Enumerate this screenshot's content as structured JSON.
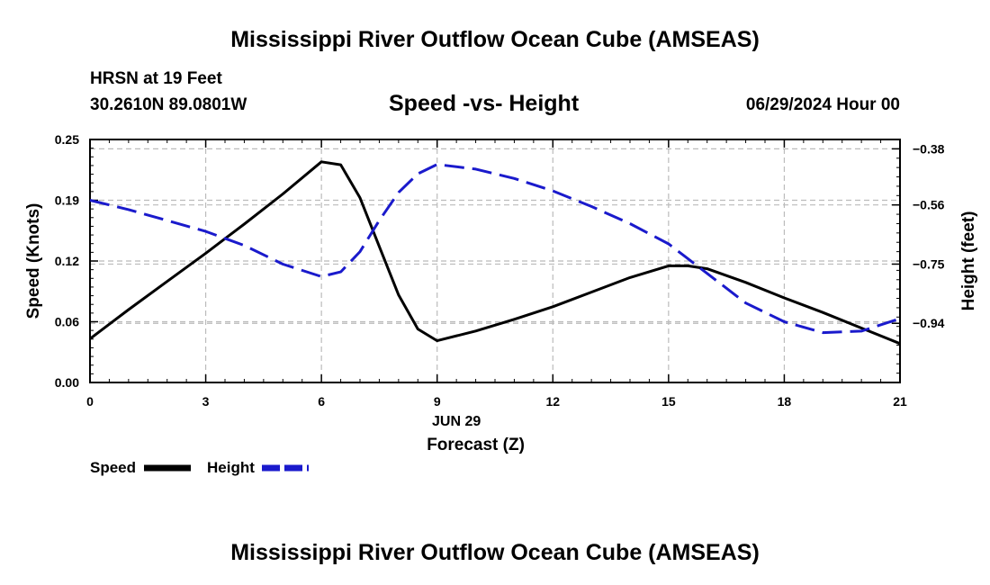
{
  "header": {
    "title_top": "Mississippi River Outflow Ocean Cube (AMSEAS)",
    "station": "HRSN at 19 Feet",
    "location": "30.2610N  89.0801W",
    "date_hour": "06/29/2024 Hour 00",
    "title_bottom": "Mississippi River Outflow Ocean Cube (AMSEAS)"
  },
  "colors": {
    "speed": "#000000",
    "height": "#1a1acc",
    "grid": "#bbbbbb"
  },
  "chart_data": {
    "type": "line",
    "title": "Speed -vs- Height",
    "xlabel": "Forecast (Z)",
    "date_label": "JUN 29",
    "ylabel": "Speed (Knots)",
    "y2label": "Height (feet)",
    "xlim": [
      0,
      21
    ],
    "ylim": [
      0.0,
      0.25
    ],
    "y2lim": [
      -1.13,
      -0.35
    ],
    "x_ticks": [
      0,
      3,
      6,
      9,
      12,
      15,
      18,
      21
    ],
    "x_tick_labels": [
      "0",
      "3",
      "6",
      "9",
      "12",
      "15",
      "18",
      "21"
    ],
    "y_ticks": [
      0.0,
      0.0625,
      0.125,
      0.1875,
      0.25
    ],
    "y_tick_labels": [
      "0.00",
      "0.06",
      "0.12",
      "0.19",
      "0.25"
    ],
    "y2_ticks": [
      -0.38,
      -0.56,
      -0.75,
      -0.94
    ],
    "y2_tick_labels": [
      "−0.38",
      "−0.56",
      "−0.75",
      "−0.94"
    ],
    "series": [
      {
        "name": "Speed",
        "axis": "left",
        "style": "solid",
        "x": [
          0,
          1,
          2,
          3,
          4,
          5,
          6,
          6.5,
          7,
          7.5,
          8,
          8.5,
          9,
          10,
          11,
          12,
          13,
          14,
          15,
          15.5,
          16,
          17,
          18,
          19,
          20,
          21
        ],
        "y": [
          0.045,
          0.075,
          0.104,
          0.133,
          0.163,
          0.194,
          0.227,
          0.224,
          0.19,
          0.14,
          0.09,
          0.055,
          0.043,
          0.053,
          0.065,
          0.078,
          0.093,
          0.108,
          0.12,
          0.12,
          0.117,
          0.103,
          0.087,
          0.072,
          0.056,
          0.04
        ]
      },
      {
        "name": "Height",
        "axis": "right",
        "style": "dashed",
        "x": [
          0,
          1,
          2,
          3,
          4,
          5,
          6,
          6.5,
          7,
          7.5,
          8,
          8.5,
          9,
          10,
          11,
          12,
          13,
          14,
          15,
          16,
          17,
          18,
          19,
          20,
          21
        ],
        "y": [
          -0.545,
          -0.575,
          -0.61,
          -0.645,
          -0.69,
          -0.75,
          -0.79,
          -0.775,
          -0.71,
          -0.61,
          -0.52,
          -0.46,
          -0.43,
          -0.445,
          -0.475,
          -0.515,
          -0.565,
          -0.62,
          -0.685,
          -0.78,
          -0.875,
          -0.935,
          -0.97,
          -0.965,
          -0.925
        ]
      }
    ],
    "legend": [
      {
        "label": "Speed",
        "series": "Speed"
      },
      {
        "label": "Height",
        "series": "Height"
      }
    ]
  }
}
